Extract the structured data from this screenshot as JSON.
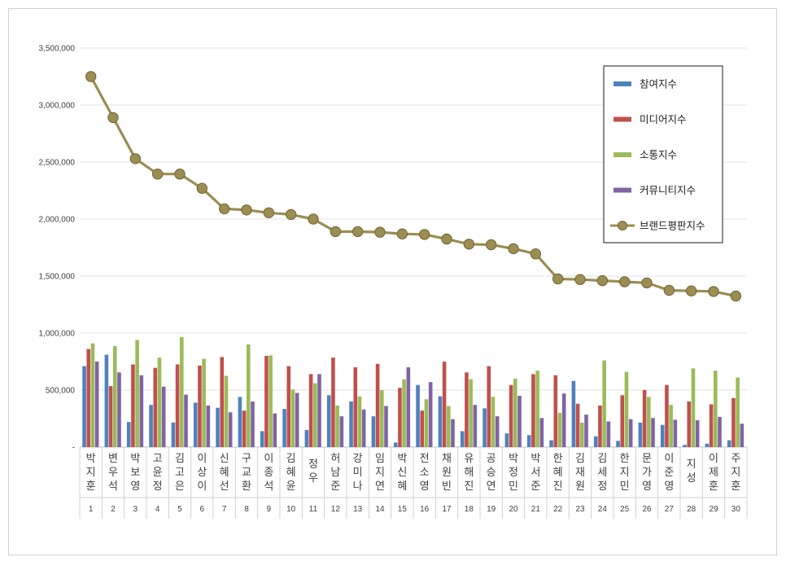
{
  "colors": {
    "participation": "#4f81bd",
    "media": "#c0504d",
    "communication": "#9bbb59",
    "community": "#8064a2",
    "brand": "#9c8d52"
  },
  "chart_data": {
    "type": "bar",
    "title": "",
    "xlabel": "",
    "ylabel": "",
    "ylim": [
      0,
      3500000
    ],
    "yticks": [
      0,
      500000,
      1000000,
      1500000,
      2000000,
      2500000,
      3000000,
      3500000
    ],
    "ytick_labels": [
      "-",
      "500,000",
      "1,000,000",
      "1,500,000",
      "2,000,000",
      "2,500,000",
      "3,000,000",
      "3,500,000"
    ],
    "grid": true,
    "legend_position": "top-right",
    "categories": [
      "박지훈",
      "변우석",
      "박보영",
      "고윤정",
      "김고은",
      "이상이",
      "신혜선",
      "구교환",
      "이종석",
      "김혜윤",
      "정우",
      "허남준",
      "강미나",
      "임지연",
      "박신혜",
      "전소영",
      "채원빈",
      "유해진",
      "공승연",
      "박정민",
      "박서준",
      "한혜진",
      "김재원",
      "김세정",
      "한지민",
      "문가영",
      "이준영",
      "지성",
      "이제훈",
      "주지훈"
    ],
    "ranks": [
      "1",
      "2",
      "3",
      "4",
      "5",
      "6",
      "7",
      "8",
      "9",
      "10",
      "11",
      "12",
      "13",
      "14",
      "15",
      "16",
      "17",
      "18",
      "19",
      "20",
      "21",
      "22",
      "23",
      "24",
      "25",
      "26",
      "27",
      "28",
      "29",
      "30"
    ],
    "series": [
      {
        "name": "참여지수",
        "kind": "bar",
        "values": [
          710000,
          810000,
          220000,
          370000,
          215000,
          390000,
          345000,
          440000,
          140000,
          335000,
          150000,
          455000,
          400000,
          270000,
          40000,
          545000,
          445000,
          140000,
          340000,
          120000,
          105000,
          60000,
          580000,
          95000,
          55000,
          215000,
          195000,
          20000,
          30000,
          60000
        ]
      },
      {
        "name": "미디어지수",
        "kind": "bar",
        "values": [
          860000,
          535000,
          725000,
          695000,
          725000,
          715000,
          790000,
          320000,
          800000,
          710000,
          640000,
          785000,
          700000,
          730000,
          520000,
          320000,
          750000,
          655000,
          710000,
          545000,
          640000,
          630000,
          380000,
          365000,
          455000,
          500000,
          545000,
          400000,
          375000,
          430000
        ]
      },
      {
        "name": "소통지수",
        "kind": "bar",
        "values": [
          910000,
          885000,
          940000,
          785000,
          965000,
          775000,
          625000,
          900000,
          805000,
          505000,
          560000,
          365000,
          445000,
          500000,
          595000,
          420000,
          360000,
          595000,
          440000,
          600000,
          670000,
          300000,
          215000,
          760000,
          660000,
          440000,
          370000,
          690000,
          670000,
          610000
        ]
      },
      {
        "name": "커뮤니티지수",
        "kind": "bar",
        "values": [
          750000,
          655000,
          630000,
          530000,
          460000,
          365000,
          305000,
          400000,
          295000,
          475000,
          640000,
          270000,
          330000,
          360000,
          700000,
          570000,
          245000,
          370000,
          270000,
          450000,
          255000,
          470000,
          285000,
          225000,
          245000,
          255000,
          240000,
          235000,
          265000,
          205000
        ]
      },
      {
        "name": "브랜드평판지수",
        "kind": "line",
        "values": [
          3250000,
          2890000,
          2530000,
          2395000,
          2395000,
          2270000,
          2090000,
          2080000,
          2055000,
          2040000,
          2000000,
          1890000,
          1890000,
          1885000,
          1870000,
          1865000,
          1825000,
          1780000,
          1775000,
          1740000,
          1695000,
          1475000,
          1470000,
          1460000,
          1450000,
          1440000,
          1375000,
          1370000,
          1365000,
          1325000
        ]
      }
    ]
  }
}
